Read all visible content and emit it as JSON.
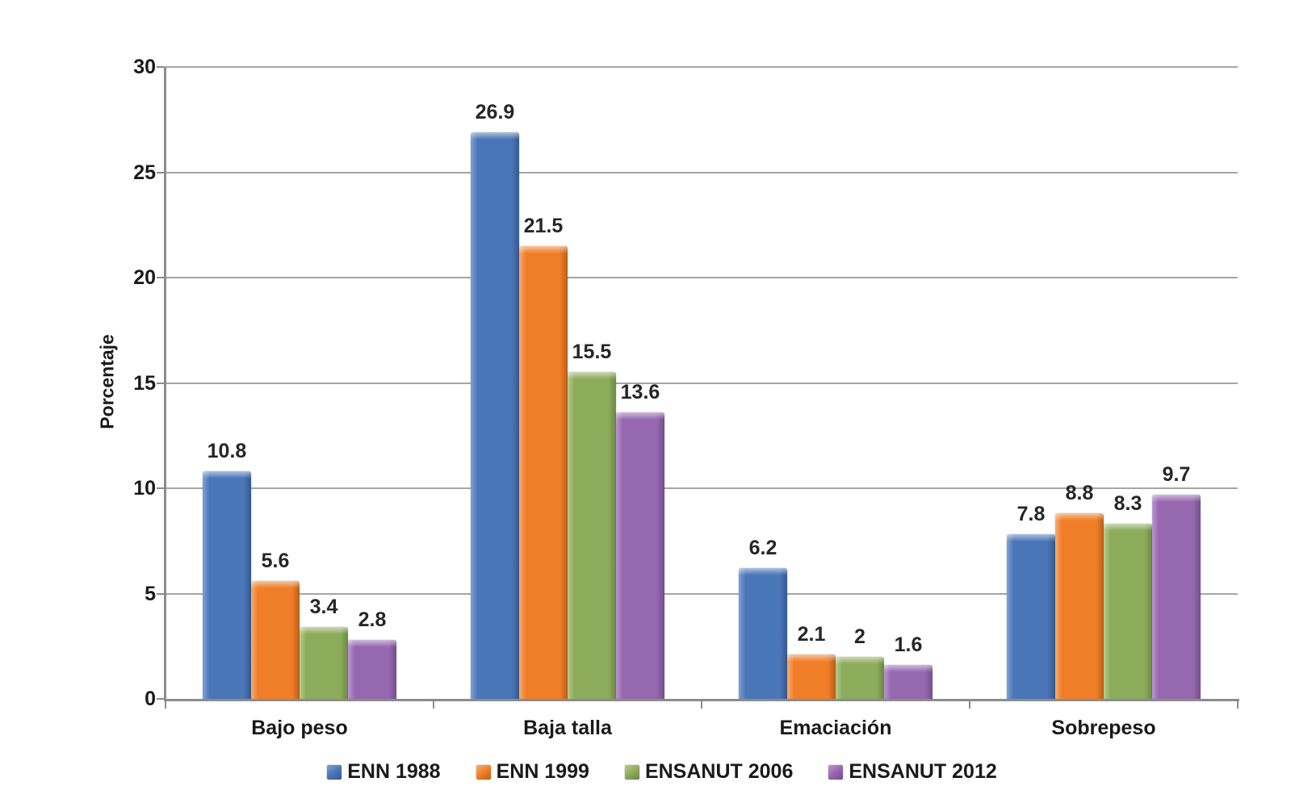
{
  "chart_data": {
    "type": "bar",
    "title": "",
    "ylabel": "Porcentaje",
    "xlabel": "",
    "ylim": [
      0,
      30
    ],
    "yticks": [
      0,
      5,
      10,
      15,
      20,
      25,
      30
    ],
    "grid": true,
    "legend_position": "bottom",
    "categories": [
      "Bajo peso",
      "Baja talla",
      "Emaciación",
      "Sobrepeso"
    ],
    "series": [
      {
        "name": "ENN 1988",
        "values": [
          10.8,
          26.9,
          6.2,
          7.8
        ],
        "color": "#4a76b8",
        "light": "#7ea2d6",
        "dark": "#35598f"
      },
      {
        "name": "ENN 1999",
        "values": [
          5.6,
          21.5,
          2.1,
          8.8
        ],
        "color": "#f07e29",
        "light": "#f7ae70",
        "dark": "#bc5f17"
      },
      {
        "name": "ENSANUT 2006",
        "values": [
          3.4,
          15.5,
          2,
          8.3
        ],
        "color": "#8cac5c",
        "light": "#b7cd8f",
        "dark": "#6c8a42"
      },
      {
        "name": "ENSANUT 2012",
        "values": [
          2.8,
          13.6,
          1.6,
          9.7
        ],
        "color": "#9668b0",
        "light": "#bc97d0",
        "dark": "#744e8c"
      }
    ],
    "axis_color": "#8c8c8c",
    "gridline_color": "#a5a5a5"
  }
}
